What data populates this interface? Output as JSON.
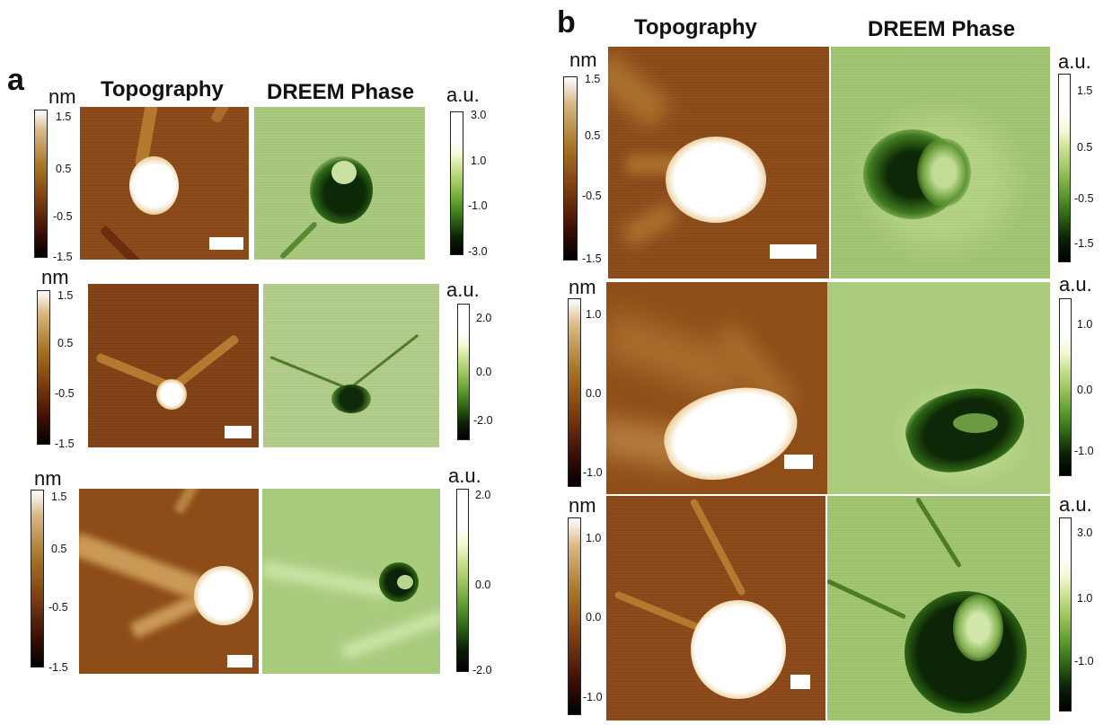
{
  "panel_a": {
    "letter": "a",
    "header_topography": "Topography",
    "header_dreem": "DREEM Phase",
    "rows": [
      {
        "topo_unit": "nm",
        "topo_ticks": [
          "1.5",
          "0.5",
          "-0.5",
          "-1.5"
        ],
        "dreem_unit": "a.u.",
        "dreem_ticks": [
          "3.0",
          "1.0",
          "-1.0",
          "-3.0"
        ]
      },
      {
        "topo_unit": "nm",
        "topo_ticks": [
          "1.5",
          "0.5",
          "-0.5",
          "-1.5"
        ],
        "dreem_unit": "a.u.",
        "dreem_ticks": [
          "2.0",
          "0.0",
          "-2.0"
        ]
      },
      {
        "topo_unit": "nm",
        "topo_ticks": [
          "1.5",
          "0.5",
          "-0.5",
          "-1.5"
        ],
        "dreem_unit": "a.u.",
        "dreem_ticks": [
          "2.0",
          "0.0",
          "-2.0"
        ]
      }
    ]
  },
  "panel_b": {
    "letter": "b",
    "header_topography": "Topography",
    "header_dreem": "DREEM Phase",
    "rows": [
      {
        "topo_unit": "nm",
        "topo_ticks": [
          "1.5",
          "0.5",
          "-0.5",
          "-1.5"
        ],
        "dreem_unit": "a.u.",
        "dreem_ticks": [
          "1.5",
          "0.5",
          "-0.5",
          "-1.5"
        ]
      },
      {
        "topo_unit": "nm",
        "topo_ticks": [
          "1.0",
          "0.0",
          "-1.0"
        ],
        "dreem_unit": "a.u.",
        "dreem_ticks": [
          "1.0",
          "0.0",
          "-1.0"
        ]
      },
      {
        "topo_unit": "nm",
        "topo_ticks": [
          "1.0",
          "0.0",
          "-1.0"
        ],
        "dreem_unit": "a.u.",
        "dreem_ticks": [
          "3.0",
          "1.0",
          "-1.0"
        ]
      }
    ]
  },
  "colors": {
    "topography_low": "#000000",
    "topography_mid": "#8c4a16",
    "topography_high": "#ffffff",
    "dreem_low": "#000000",
    "dreem_mid": "#a6c87a",
    "dreem_high": "#ffffff",
    "scale_bar": "#ffffff"
  }
}
